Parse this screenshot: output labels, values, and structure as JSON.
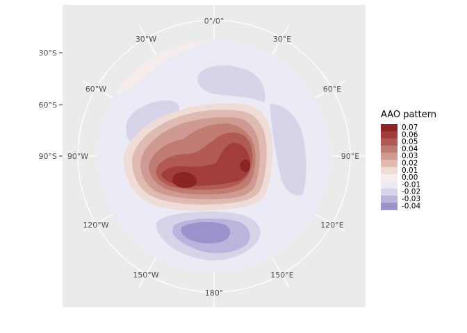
{
  "map": {
    "projection": "polar-stereographic-south",
    "longitude_labels": [
      "0°/0°",
      "30°E",
      "60°E",
      "90°E",
      "120°E",
      "150°E",
      "180°",
      "150°W",
      "120°W",
      "90°W",
      "60°W",
      "30°W"
    ],
    "latitude_labels": [
      "30°S",
      "60°S",
      "90°S"
    ],
    "panel_background": "#ebebeb",
    "grid_color": "#ffffff"
  },
  "legend": {
    "title": "AAO pattern",
    "items": [
      {
        "label": "0.07",
        "color": "#8b2525"
      },
      {
        "label": "0.06",
        "color": "#a13e3b"
      },
      {
        "label": "0.05",
        "color": "#b25a54"
      },
      {
        "label": "0.04",
        "color": "#c07b72"
      },
      {
        "label": "0.03",
        "color": "#cf9a91"
      },
      {
        "label": "0.02",
        "color": "#debab2"
      },
      {
        "label": "0.01",
        "color": "#efdcd7"
      },
      {
        "label": "0.00",
        "color": "#f6ecec"
      },
      {
        "label": "-0.01",
        "color": "#eceaf4"
      },
      {
        "label": "-0.02",
        "color": "#d7d4ea"
      },
      {
        "label": "-0.03",
        "color": "#bbb4dc"
      },
      {
        "label": "-0.04",
        "color": "#9c92cb"
      }
    ]
  }
}
